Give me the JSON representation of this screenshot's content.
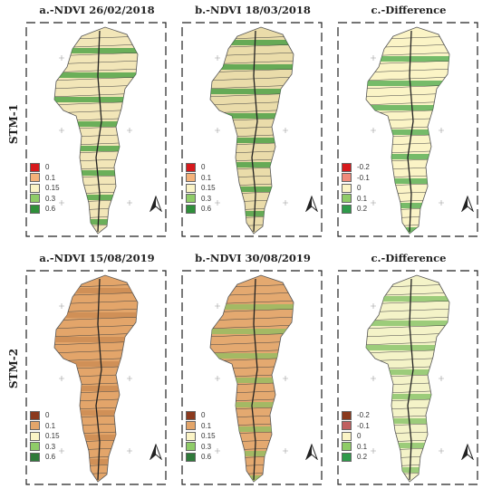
{
  "rows": [
    {
      "label": "STM-1",
      "panels": [
        {
          "title": "a.-NDVI 26/02/2018",
          "fill": "#f2e6b8",
          "accent": "#3e9c3a",
          "legend": [
            {
              "label": "0",
              "color": "#d7191c"
            },
            {
              "label": "0.1",
              "color": "#f4b27a"
            },
            {
              "label": "0.15",
              "color": "#fbf4c6"
            },
            {
              "label": "0.3",
              "color": "#8fcc68"
            },
            {
              "label": "0.6",
              "color": "#2f8f3a"
            }
          ]
        },
        {
          "title": "b.-NDVI 18/03/2018",
          "fill": "#eadcaa",
          "accent": "#3a9a3a",
          "legend": [
            {
              "label": "0",
              "color": "#d7191c"
            },
            {
              "label": "0.1",
              "color": "#f4b27a"
            },
            {
              "label": "0.15",
              "color": "#fbf4c6"
            },
            {
              "label": "0.3",
              "color": "#8fcc68"
            },
            {
              "label": "0.6",
              "color": "#2f8f3a"
            }
          ]
        },
        {
          "title": "c.-Difference",
          "fill": "#fbf4c6",
          "accent": "#4aa84a",
          "legend": [
            {
              "label": "-0.2",
              "color": "#d7191c"
            },
            {
              "label": "-0.1",
              "color": "#f08a7a"
            },
            {
              "label": "0",
              "color": "#fbf4c6"
            },
            {
              "label": "0.1",
              "color": "#8fcc68"
            },
            {
              "label": "0.2",
              "color": "#2f9a4a"
            }
          ]
        }
      ]
    },
    {
      "label": "STM-2",
      "panels": [
        {
          "title": "a.-NDVI 15/08/2019",
          "fill": "#e3a56a",
          "accent": "#c98a52",
          "legend": [
            {
              "label": "0",
              "color": "#8b3a1e"
            },
            {
              "label": "0.1",
              "color": "#e3a56a"
            },
            {
              "label": "0.15",
              "color": "#fbf4c6"
            },
            {
              "label": "0.3",
              "color": "#8fcc68"
            },
            {
              "label": "0.6",
              "color": "#2f7a3a"
            }
          ]
        },
        {
          "title": "b.-NDVI 30/08/2019",
          "fill": "#e4a970",
          "accent": "#8fbf60",
          "legend": [
            {
              "label": "0",
              "color": "#8b3a1e"
            },
            {
              "label": "0.1",
              "color": "#e3a56a"
            },
            {
              "label": "0.15",
              "color": "#fbf4c6"
            },
            {
              "label": "0.3",
              "color": "#8fcc68"
            },
            {
              "label": "0.6",
              "color": "#2f7a3a"
            }
          ]
        },
        {
          "title": "c.-Difference",
          "fill": "#f4f3c8",
          "accent": "#7fbf60",
          "legend": [
            {
              "label": "-0.2",
              "color": "#8b3a1e"
            },
            {
              "label": "-0.1",
              "color": "#c06060"
            },
            {
              "label": "0",
              "color": "#fbf4c6"
            },
            {
              "label": "0.1",
              "color": "#8fcc68"
            },
            {
              "label": "0.2",
              "color": "#2f9a4a"
            }
          ]
        }
      ]
    }
  ]
}
